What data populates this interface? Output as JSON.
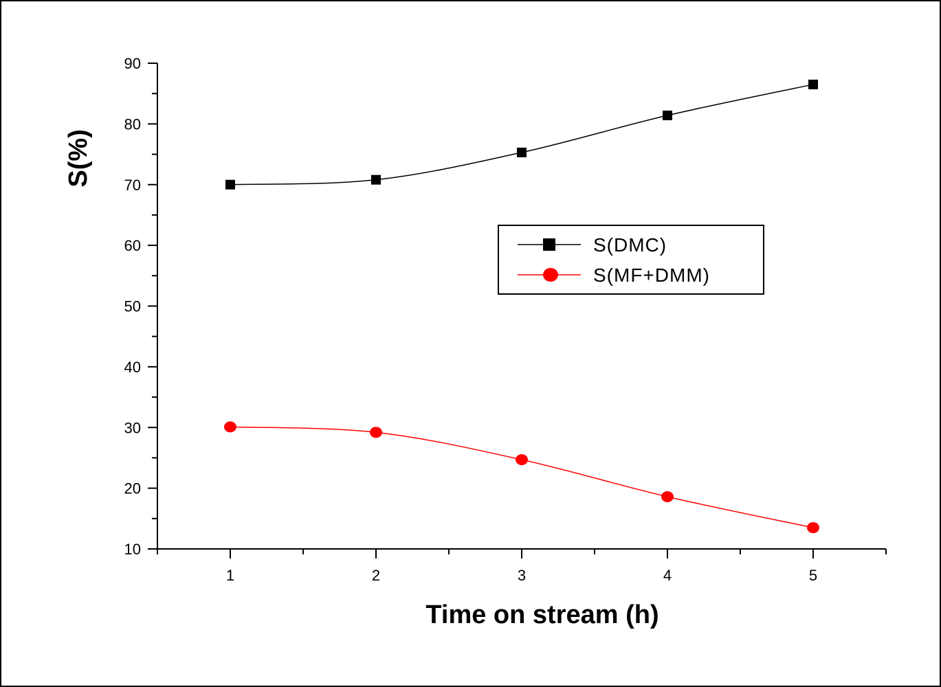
{
  "chart_data": {
    "type": "line",
    "xlabel": "Time on stream (h)",
    "ylabel": "S(%)",
    "x": [
      1,
      2,
      3,
      4,
      5
    ],
    "xlim": [
      0.5,
      5.5
    ],
    "ylim": [
      10,
      90
    ],
    "xticks": [
      1,
      2,
      3,
      4,
      5
    ],
    "yticks": [
      10,
      20,
      30,
      40,
      50,
      60,
      70,
      80,
      90
    ],
    "grid": false,
    "legend_position": "center-right",
    "series": [
      {
        "name": "S(DMC)",
        "marker": "square",
        "color": "#000000",
        "values": [
          70.0,
          70.8,
          75.3,
          81.4,
          86.5
        ]
      },
      {
        "name": "S(MF+DMM)",
        "marker": "circle",
        "color": "#ff0000",
        "values": [
          30.1,
          29.2,
          24.7,
          18.6,
          13.5
        ]
      }
    ]
  }
}
